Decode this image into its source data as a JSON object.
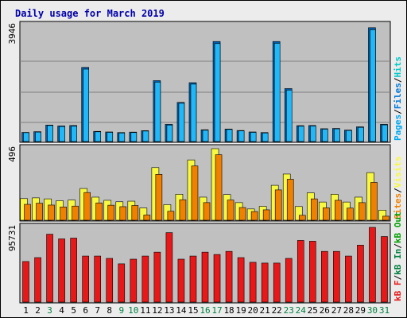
{
  "title": "Daily usage for March 2019",
  "colors": {
    "hits": "#00c8c8",
    "files": "#0078d8",
    "pages": "#00a8f0",
    "visits": "#f8f840",
    "sites": "#f08000",
    "kbin": "#008040",
    "kbout": "#00a000",
    "kbf": "#e81818",
    "panel": "#c0c0c0",
    "grid": "#808080",
    "weekend": "#008040",
    "axis_text": "#000000",
    "title_color": "#0000aa"
  },
  "legend": {
    "top": [
      {
        "text": "Hits",
        "color": "#00c8c8"
      },
      {
        "text": "/",
        "color": "#000000"
      },
      {
        "text": "Files",
        "color": "#0078d8"
      },
      {
        "text": "/",
        "color": "#000000"
      },
      {
        "text": "Pages",
        "color": "#00a8f0"
      }
    ],
    "middle": [
      {
        "text": "Visits",
        "color": "#f8f840"
      },
      {
        "text": "/",
        "color": "#000000"
      },
      {
        "text": "Sites",
        "color": "#f08000"
      }
    ],
    "bottom": [
      {
        "text": "kB Out",
        "color": "#00a000"
      },
      {
        "text": "/",
        "color": "#000000"
      },
      {
        "text": "kB In",
        "color": "#008040"
      },
      {
        "text": "/",
        "color": "#000000"
      },
      {
        "text": "kB F",
        "color": "#e81818"
      }
    ]
  },
  "chart_data": [
    {
      "type": "bar",
      "panel": "hits-files",
      "ymax_label": "3946",
      "ylim": [
        0,
        3946
      ],
      "categories": [
        "1",
        "2",
        "3",
        "4",
        "5",
        "6",
        "7",
        "8",
        "9",
        "10",
        "11",
        "12",
        "13",
        "14",
        "15",
        "16",
        "17",
        "18",
        "19",
        "20",
        "21",
        "22",
        "23",
        "24",
        "25",
        "26",
        "27",
        "28",
        "29",
        "30",
        "31"
      ],
      "series": [
        {
          "name": "Hits",
          "values": [
            310,
            335,
            560,
            530,
            545,
            2520,
            345,
            325,
            305,
            320,
            370,
            2070,
            585,
            1330,
            2000,
            400,
            3400,
            425,
            375,
            325,
            305,
            3400,
            1800,
            540,
            545,
            435,
            445,
            390,
            500,
            3870,
            585
          ]
        },
        {
          "name": "Files",
          "values": [
            300,
            320,
            545,
            510,
            520,
            2460,
            330,
            310,
            290,
            305,
            355,
            2020,
            560,
            1300,
            1950,
            385,
            3330,
            410,
            360,
            310,
            290,
            3340,
            1750,
            520,
            525,
            420,
            430,
            375,
            480,
            3800,
            565
          ]
        },
        {
          "name": "Pages",
          "values": [
            0,
            0,
            0,
            0,
            0,
            0,
            0,
            0,
            0,
            0,
            0,
            0,
            0,
            0,
            0,
            0,
            0,
            0,
            0,
            0,
            0,
            0,
            0,
            0,
            0,
            0,
            0,
            0,
            0,
            0,
            0
          ]
        }
      ]
    },
    {
      "type": "bar",
      "panel": "visits-sites",
      "ymax_label": "496",
      "ylim": [
        0,
        496
      ],
      "categories": [
        "1",
        "2",
        "3",
        "4",
        "5",
        "6",
        "7",
        "8",
        "9",
        "10",
        "11",
        "12",
        "13",
        "14",
        "15",
        "16",
        "17",
        "18",
        "19",
        "20",
        "21",
        "22",
        "23",
        "24",
        "25",
        "26",
        "27",
        "28",
        "29",
        "30",
        "31"
      ],
      "series": [
        {
          "name": "Visits",
          "values": [
            150,
            155,
            148,
            135,
            140,
            220,
            160,
            138,
            128,
            132,
            85,
            365,
            108,
            180,
            418,
            160,
            496,
            178,
            122,
            78,
            96,
            242,
            320,
            95,
            190,
            126,
            180,
            126,
            160,
            330,
            70
          ]
        },
        {
          "name": "Sites",
          "values": [
            110,
            118,
            105,
            92,
            98,
            192,
            120,
            104,
            94,
            102,
            36,
            318,
            62,
            142,
            376,
            122,
            454,
            140,
            88,
            60,
            72,
            210,
            284,
            34,
            148,
            86,
            138,
            84,
            122,
            262,
            28
          ]
        }
      ]
    },
    {
      "type": "bar",
      "panel": "kbytes",
      "ymax_label": "95731",
      "ylim": [
        0,
        95731
      ],
      "categories": [
        "1",
        "2",
        "3",
        "4",
        "5",
        "6",
        "7",
        "8",
        "9",
        "10",
        "11",
        "12",
        "13",
        "14",
        "15",
        "16",
        "17",
        "18",
        "19",
        "20",
        "21",
        "22",
        "23",
        "24",
        "25",
        "26",
        "27",
        "28",
        "29",
        "30",
        "31"
      ],
      "series": [
        {
          "name": "kB F",
          "values": [
            0,
            0,
            0,
            0,
            0,
            0,
            0,
            0,
            0,
            0,
            0,
            0,
            0,
            0,
            0,
            0,
            0,
            0,
            0,
            0,
            0,
            0,
            0,
            0,
            0,
            0,
            0,
            0,
            0,
            0,
            0
          ]
        },
        {
          "name": "kB In",
          "values": [
            0,
            0,
            0,
            0,
            0,
            0,
            0,
            0,
            0,
            0,
            0,
            0,
            0,
            0,
            0,
            0,
            0,
            0,
            0,
            0,
            0,
            0,
            0,
            0,
            0,
            0,
            0,
            0,
            0,
            0,
            0
          ]
        },
        {
          "name": "kB Out",
          "values": [
            52000,
            57000,
            87000,
            81000,
            82000,
            59000,
            59000,
            56000,
            49000,
            55000,
            59000,
            64000,
            89000,
            55000,
            59000,
            64000,
            61000,
            65000,
            57000,
            51000,
            50000,
            50000,
            56000,
            79000,
            78000,
            65000,
            65000,
            59000,
            73000,
            95731,
            84000
          ]
        }
      ]
    }
  ],
  "weekend_days": [
    3,
    9,
    10,
    16,
    17,
    23,
    24,
    30,
    31
  ]
}
